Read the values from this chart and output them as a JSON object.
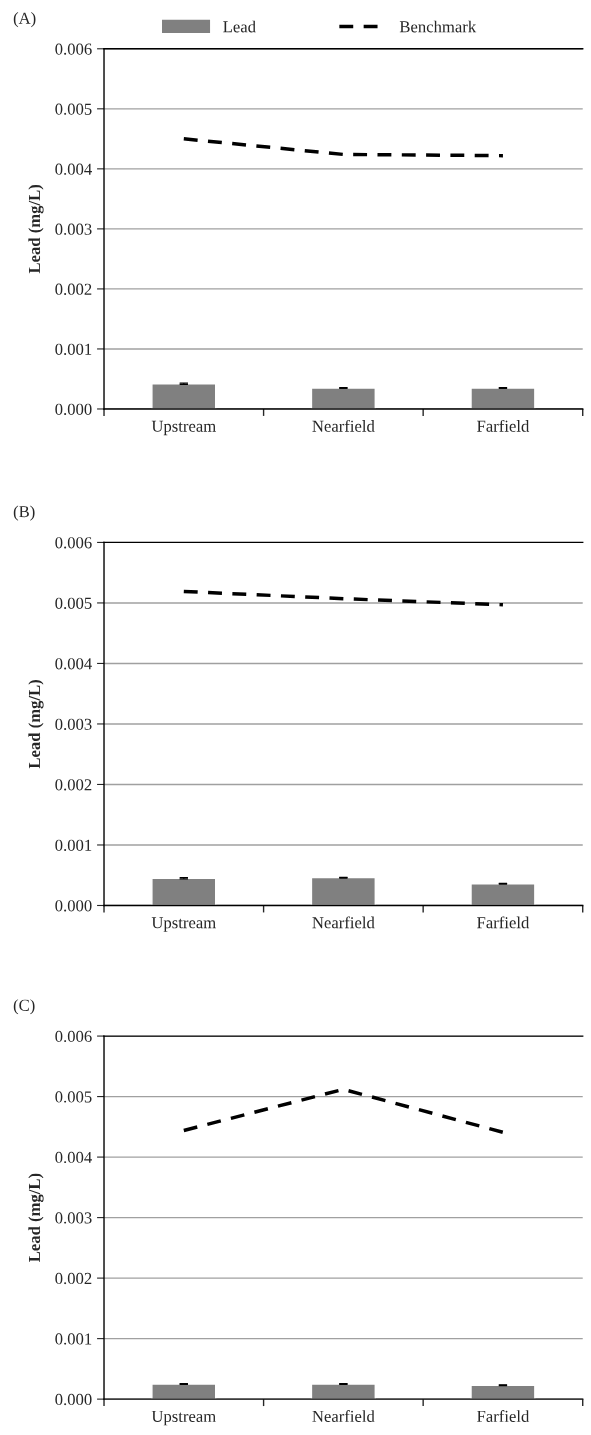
{
  "chart_data": [
    {
      "type": "bar",
      "title": "(A)",
      "ylabel": "Lead (mg/L)",
      "categories": [
        "Upstream",
        "Nearfield",
        "Farfield"
      ],
      "ylim": [
        0,
        0.006
      ],
      "yticks": [
        {
          "value": 0,
          "label": "0.000"
        },
        {
          "value": 0.001,
          "label": "0.001"
        },
        {
          "value": 0.002,
          "label": "0.002"
        },
        {
          "value": 0.003,
          "label": "0.003"
        },
        {
          "value": 0.004,
          "label": "0.004"
        },
        {
          "value": 0.005,
          "label": "0.005"
        },
        {
          "value": 0.006,
          "label": "0.006"
        }
      ],
      "grid": "y",
      "legend": "top",
      "series": [
        {
          "name": "Lead",
          "color": "#808080",
          "values": [
            0.00042,
            0.00035,
            0.00035
          ],
          "errors": [
            1e-05,
            5e-06,
            5e-06
          ]
        },
        {
          "name": "Benchmark",
          "type": "line",
          "color": "#000000",
          "line_style": "dashed",
          "values": [
            0.0045,
            0.00424,
            0.00422
          ]
        }
      ]
    },
    {
      "type": "bar",
      "title": "(B)",
      "ylabel": "Lead (mg/L)",
      "categories": [
        "Upstream",
        "Nearfield",
        "Farfield"
      ],
      "ylim": [
        0,
        0.006
      ],
      "yticks": [
        {
          "value": 0,
          "label": "0.000"
        },
        {
          "value": 0.001,
          "label": "0.001"
        },
        {
          "value": 0.002,
          "label": "0.002"
        },
        {
          "value": 0.003,
          "label": "0.003"
        },
        {
          "value": 0.004,
          "label": "0.004"
        },
        {
          "value": 0.005,
          "label": "0.005"
        },
        {
          "value": 0.006,
          "label": "0.006"
        }
      ],
      "grid": "y",
      "series": [
        {
          "color": "#808080",
          "values": [
            0.00045,
            0.00046,
            0.00036
          ],
          "errors": [
            1e-05,
            5e-06,
            5e-06
          ]
        },
        {
          "type": "line",
          "color": "#000000",
          "line_style": "dashed",
          "values": [
            0.00519,
            0.00507,
            0.00497
          ]
        }
      ]
    },
    {
      "type": "bar",
      "title": "(C)",
      "ylabel": "Lead (mg/L)",
      "categories": [
        "Upstream",
        "Nearfield",
        "Farfield"
      ],
      "ylim": [
        0,
        0.006
      ],
      "yticks": [
        {
          "value": 0,
          "label": "0.000"
        },
        {
          "value": 0.001,
          "label": "0.001"
        },
        {
          "value": 0.002,
          "label": "0.002"
        },
        {
          "value": 0.003,
          "label": "0.003"
        },
        {
          "value": 0.004,
          "label": "0.004"
        },
        {
          "value": 0.005,
          "label": "0.005"
        },
        {
          "value": 0.006,
          "label": "0.006"
        }
      ],
      "grid": "y",
      "series": [
        {
          "color": "#808080",
          "values": [
            0.00025,
            0.00025,
            0.00023
          ],
          "errors": [
            5e-06,
            5e-06,
            5e-06
          ]
        },
        {
          "type": "line",
          "color": "#000000",
          "line_style": "dashed",
          "values": [
            0.00444,
            0.00512,
            0.00441
          ]
        }
      ]
    }
  ]
}
